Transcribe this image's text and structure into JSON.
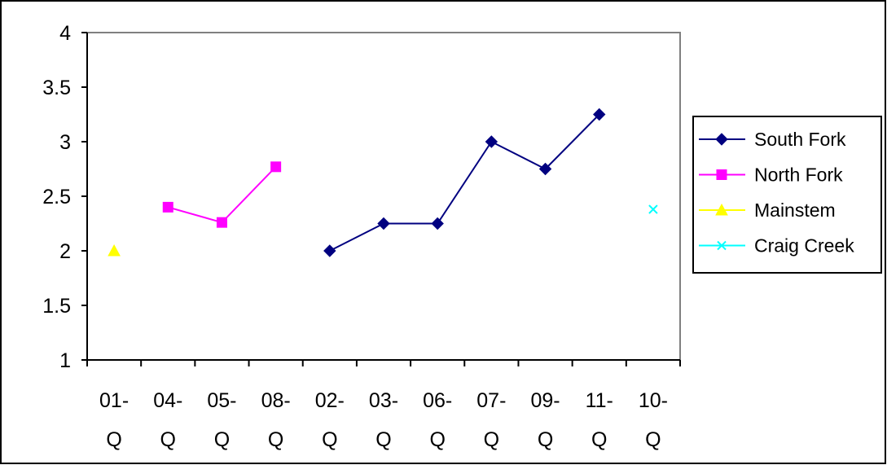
{
  "chart_data": {
    "type": "line",
    "title": "",
    "xlabel": "",
    "ylabel": "",
    "categories": [
      [
        "01-",
        "Q"
      ],
      [
        "04-",
        "Q"
      ],
      [
        "05-",
        "Q"
      ],
      [
        "08-",
        "Q"
      ],
      [
        "02-",
        "Q"
      ],
      [
        "03-",
        "Q"
      ],
      [
        "06-",
        "Q"
      ],
      [
        "07-",
        "Q"
      ],
      [
        "09-",
        "Q"
      ],
      [
        "11-",
        "Q"
      ],
      [
        "10-",
        "Q"
      ]
    ],
    "ylim": [
      1,
      4
    ],
    "yticks": [
      "1",
      "1.5",
      "2",
      "2.5",
      "3",
      "3.5",
      "4"
    ],
    "grid": false,
    "legend_position": "right",
    "series": [
      {
        "name": "South Fork",
        "color": "#000080",
        "marker": "diamond",
        "values": [
          null,
          null,
          null,
          null,
          2.0,
          2.25,
          2.25,
          3.0,
          2.75,
          3.25,
          null
        ]
      },
      {
        "name": "North Fork",
        "color": "#FF00FF",
        "marker": "square",
        "values": [
          null,
          2.4,
          2.26,
          2.77,
          null,
          null,
          null,
          null,
          null,
          null,
          null
        ]
      },
      {
        "name": "Mainstem",
        "color": "#FFFF00",
        "marker": "triangle",
        "values": [
          2.0,
          null,
          null,
          null,
          null,
          null,
          null,
          null,
          null,
          null,
          null
        ]
      },
      {
        "name": "Craig Creek",
        "color": "#00FFFF",
        "marker": "x",
        "values": [
          null,
          null,
          null,
          null,
          null,
          null,
          null,
          null,
          null,
          null,
          2.38
        ]
      }
    ]
  }
}
